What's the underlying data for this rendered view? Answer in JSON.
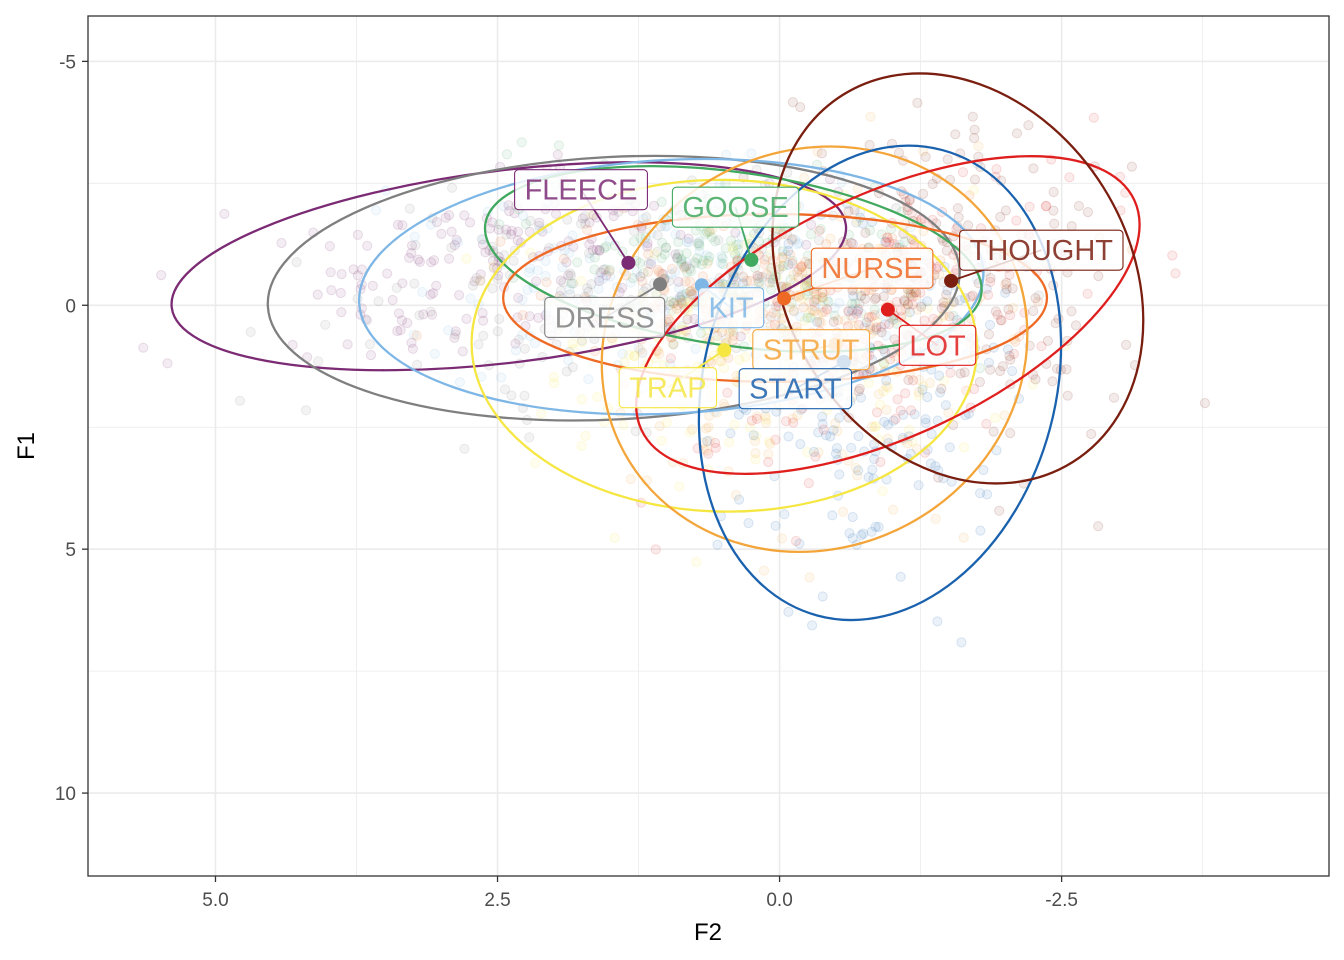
{
  "chart_data": {
    "type": "scatter",
    "title": "",
    "xlabel": "F2",
    "ylabel": "F1",
    "xlim": [
      6.13,
      -4.87
    ],
    "ylim": [
      11.7,
      -5.93
    ],
    "x_reversed": true,
    "y_reversed": true,
    "grid": true,
    "xticks": [
      5.0,
      2.5,
      0.0,
      -2.5
    ],
    "xtick_labels": [
      "5.0",
      "2.5",
      "0.0",
      "-2.5"
    ],
    "yticks": [
      -5,
      0,
      5,
      10
    ],
    "ytick_labels": [
      "-5",
      "0",
      "5",
      "10"
    ],
    "series": [
      {
        "name": "FLEECE",
        "color": "#7B2A74",
        "mean": {
          "x": 1.34,
          "y": -0.87
        },
        "ellipse": {
          "cx": 2.4,
          "cy": -0.8,
          "rx": 3.01,
          "ry": 1.97,
          "angle": -7
        }
      },
      {
        "name": "DRESS",
        "color": "#7F7F7F",
        "mean": {
          "x": 1.06,
          "y": -0.43
        },
        "ellipse": {
          "cx": 1.47,
          "cy": -0.35,
          "rx": 3.07,
          "ry": 2.69,
          "angle": -3
        }
      },
      {
        "name": "KIT",
        "color": "#7EB7E6",
        "mean": {
          "x": 0.69,
          "y": -0.41
        },
        "ellipse": {
          "cx": 0.96,
          "cy": -0.38,
          "rx": 2.77,
          "ry": 2.6,
          "angle": -3
        }
      },
      {
        "name": "GOOSE",
        "color": "#41A85F",
        "mean": {
          "x": 0.25,
          "y": -0.93
        },
        "ellipse": {
          "cx": 0.41,
          "cy": -0.95,
          "rx": 2.22,
          "ry": 1.78,
          "angle": 8
        }
      },
      {
        "name": "TRAP",
        "color": "#F5E642",
        "mean": {
          "x": 0.49,
          "y": 0.92
        },
        "ellipse": {
          "cx": 0.49,
          "cy": 0.83,
          "rx": 2.24,
          "ry": 3.4,
          "angle": 1
        }
      },
      {
        "name": "NURSE",
        "color": "#EE6A24",
        "mean": {
          "x": -0.04,
          "y": -0.14
        },
        "ellipse": {
          "cx": 0.04,
          "cy": -0.15,
          "rx": 2.41,
          "ry": 1.72,
          "angle": 0
        }
      },
      {
        "name": "STRUT",
        "color": "#F4A53A",
        "mean": {
          "x": -0.5,
          "y": 0.8
        },
        "ellipse": {
          "cx": -0.31,
          "cy": 0.9,
          "rx": 1.92,
          "ry": 4.07,
          "angle": -28
        }
      },
      {
        "name": "START",
        "color": "#1B62AE",
        "mean": {
          "x": -0.57,
          "y": 1.16
        },
        "ellipse": {
          "cx": -0.89,
          "cy": 1.59,
          "rx": 1.56,
          "ry": 4.94,
          "angle": 15
        }
      },
      {
        "name": "LOT",
        "color": "#DF1E1E",
        "mean": {
          "x": -0.96,
          "y": 0.09
        },
        "ellipse": {
          "cx": -0.96,
          "cy": 0.2,
          "rx": 2.41,
          "ry": 2.48,
          "angle": -25
        }
      },
      {
        "name": "THOUGHT",
        "color": "#7A1E10",
        "mean": {
          "x": -1.52,
          "y": -0.5
        },
        "ellipse": {
          "cx": -1.58,
          "cy": -0.55,
          "rx": 1.92,
          "ry": 3.52,
          "angle": 58
        }
      }
    ],
    "label_anchor_offsets": [
      {
        "name": "FLEECE",
        "dx": 0.42,
        "dy": -1.5
      },
      {
        "name": "DRESS",
        "dx": 0.49,
        "dy": 0.68
      },
      {
        "name": "KIT",
        "dx": -0.26,
        "dy": 0.46
      },
      {
        "name": "GOOSE",
        "dx": 0.14,
        "dy": -1.08
      },
      {
        "name": "TRAP",
        "dx": 0.5,
        "dy": 0.77
      },
      {
        "name": "NURSE",
        "dx": -0.78,
        "dy": -0.62
      },
      {
        "name": "STRUT",
        "dx": 0.22,
        "dy": 0.11
      },
      {
        "name": "START",
        "dx": 0.43,
        "dy": 0.55
      },
      {
        "name": "LOT",
        "dx": -0.44,
        "dy": 0.73
      },
      {
        "name": "THOUGHT",
        "dx": -0.8,
        "dy": -0.63
      }
    ]
  }
}
